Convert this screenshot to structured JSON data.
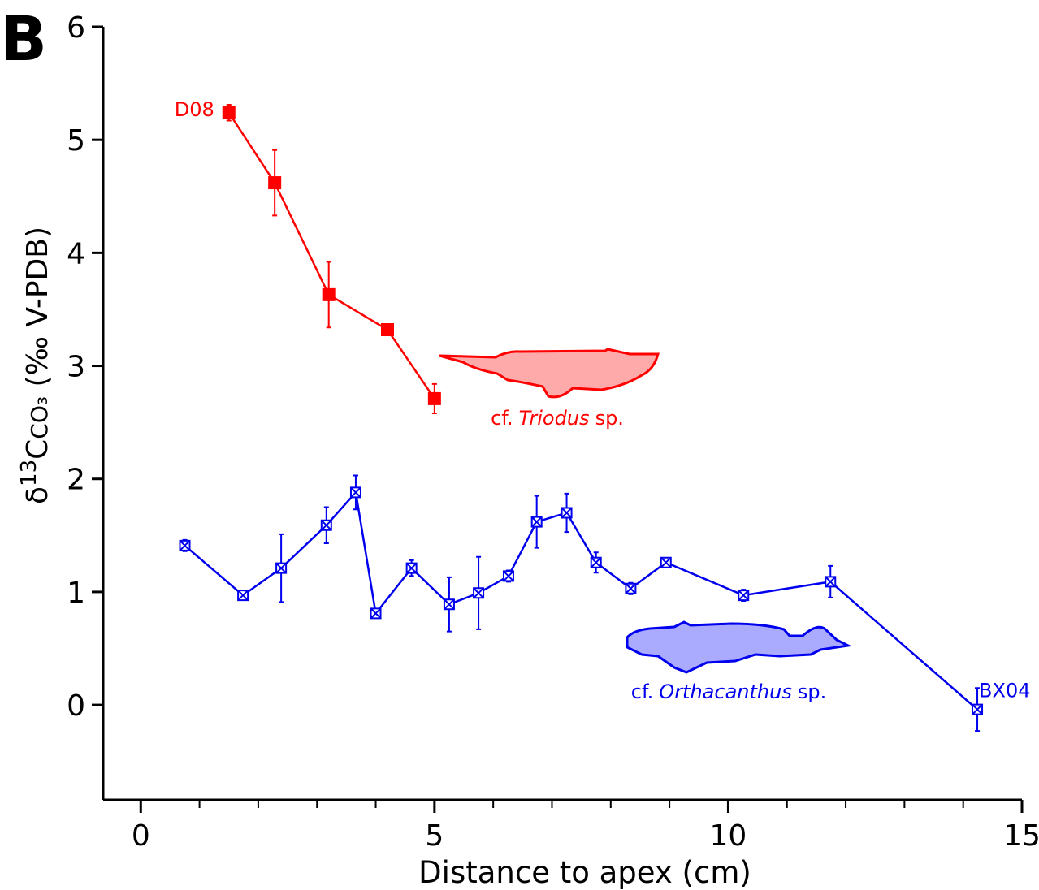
{
  "chart_data": {
    "type": "line",
    "panel_label": "B",
    "xlabel": "Distance to apex (cm)",
    "ylabel": {
      "delta": "δ",
      "sup": "13",
      "c": "C",
      "sub": "CO₃",
      "unit": " (‰ V-PDB)"
    },
    "xlim": [
      -0.64,
      15
    ],
    "ylim": [
      -0.84,
      6
    ],
    "xticks": [
      0,
      5,
      10,
      15
    ],
    "xminorticks": [
      1,
      2,
      3,
      4,
      6,
      7,
      8,
      9,
      11,
      12,
      13,
      14
    ],
    "yticks": [
      0,
      1,
      2,
      3,
      4,
      5,
      6
    ],
    "series": [
      {
        "name": "D08",
        "color": "#ff0000",
        "marker": "filled-square",
        "x": [
          1.5,
          2.28,
          3.2,
          4.2,
          5.0
        ],
        "values": [
          5.24,
          4.62,
          3.63,
          3.32,
          2.71
        ],
        "errors": [
          0.07,
          0.29,
          0.29,
          0.02,
          0.13
        ],
        "species": {
          "prefix": "cf.",
          "genus": "Triodus",
          "suffix": "sp."
        }
      },
      {
        "name": "BX04",
        "color": "#0000ee",
        "marker": "crossed-square",
        "x": [
          0.75,
          1.74,
          2.39,
          3.16,
          3.66,
          4.0,
          4.61,
          5.25,
          5.75,
          6.26,
          6.74,
          7.25,
          7.75,
          8.34,
          8.94,
          10.26,
          11.74,
          14.24
        ],
        "values": [
          1.41,
          0.97,
          1.21,
          1.59,
          1.88,
          0.81,
          1.21,
          0.89,
          0.99,
          1.14,
          1.62,
          1.7,
          1.26,
          1.03,
          1.26,
          0.97,
          1.09,
          -0.04
        ],
        "errors": [
          0.05,
          0.02,
          0.3,
          0.16,
          0.15,
          0.02,
          0.07,
          0.24,
          0.32,
          0.05,
          0.23,
          0.17,
          0.09,
          0.05,
          0.03,
          0.05,
          0.14,
          0.19
        ],
        "species": {
          "prefix": "cf.",
          "genus": "Orthacanthus",
          "suffix": "sp."
        }
      }
    ]
  }
}
